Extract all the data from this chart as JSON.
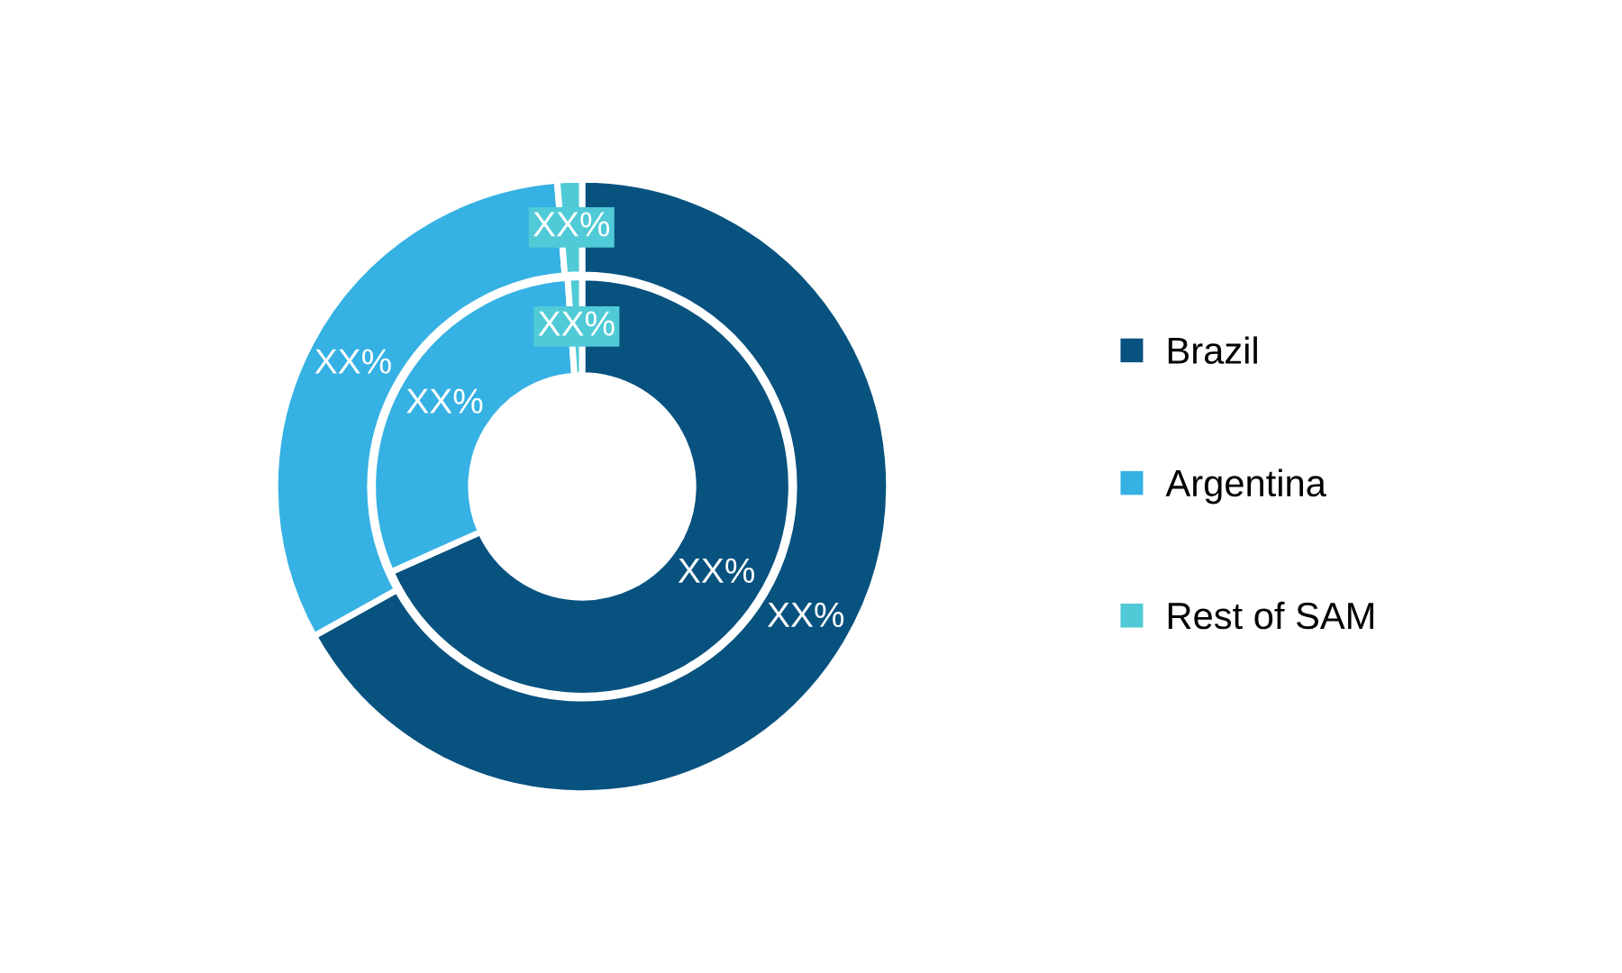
{
  "chart_data": {
    "type": "donut",
    "categories": [
      "Brazil",
      "Argentina",
      "Rest of SAM"
    ],
    "colors": [
      "#08527f",
      "#36b1e3",
      "#4fcad6"
    ],
    "legend": "right",
    "series": [
      {
        "values": [
          66.9,
          31.8,
          1.3
        ],
        "value_labels": [
          "XX%",
          "XX%",
          "XX%"
        ]
      },
      {
        "values": [
          68.3,
          30.6,
          1.1
        ],
        "value_labels": [
          "XX%",
          "XX%",
          "XX%"
        ]
      }
    ]
  }
}
